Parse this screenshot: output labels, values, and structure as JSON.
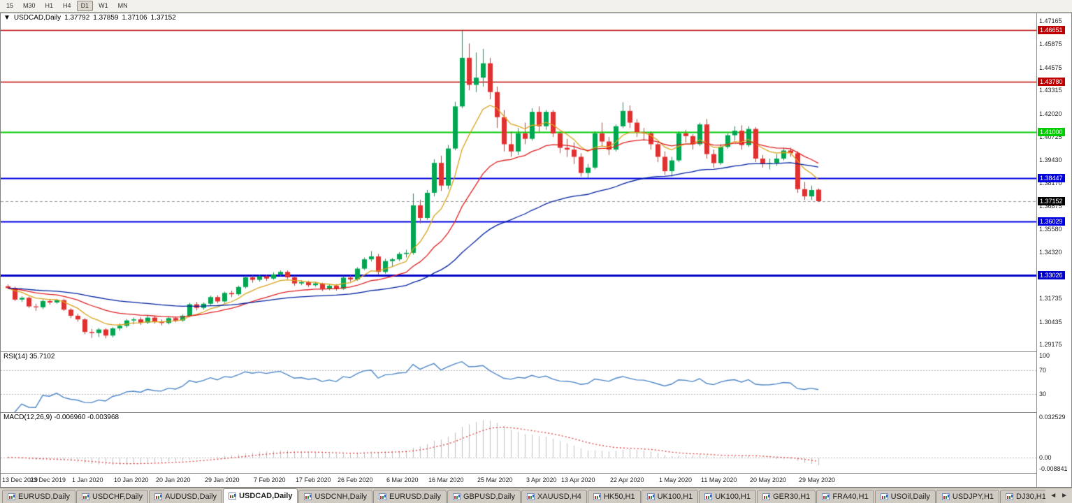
{
  "toolbar": {
    "timeframes": [
      "15",
      "M30",
      "H1",
      "H4",
      "D1",
      "W1",
      "MN"
    ],
    "active": "D1"
  },
  "chart": {
    "collapse_arrow": "▼",
    "symbol": "USDCAD,Daily",
    "open": "1.37792",
    "high": "1.37859",
    "low": "1.37106",
    "close": "1.37152",
    "y_ticks": [
      "1.47165",
      "1.45875",
      "1.44575",
      "1.43315",
      "1.42020",
      "1.40725",
      "1.39430",
      "1.38170",
      "1.36875",
      "1.35580",
      "1.34320",
      "1.33030",
      "1.31735",
      "1.30435",
      "1.29175"
    ]
  },
  "rsi": {
    "label": "RSI(14) 35.7102",
    "ticks": [
      {
        "v": 100,
        "t": "100"
      },
      {
        "v": 70,
        "t": "70"
      },
      {
        "v": 30,
        "t": "30"
      }
    ],
    "levels": [
      70,
      30
    ],
    "color": "#4E86C8",
    "range": [
      0,
      100
    ]
  },
  "macd": {
    "label": "MACD(12,26,9) -0.006960 -0.003968",
    "ticks": [
      {
        "v": 0.032529,
        "t": "0.032529"
      },
      {
        "v": 0,
        "t": "0.00"
      },
      {
        "v": -0.008841,
        "t": "-0.008841"
      }
    ],
    "range": [
      -0.0125,
      0.036
    ],
    "hist_color": "#BFBFBF",
    "signal_color": "#E03030"
  },
  "tabs": {
    "items": [
      "EURUSD,Daily",
      "USDCHF,Daily",
      "AUDUSD,Daily",
      "USDCAD,Daily",
      "USDCNH,Daily",
      "EURUSD,Daily",
      "GBPUSD,Daily",
      "XAUUSD,H4",
      "HK50,H1",
      "UK100,H1",
      "UK100,H1",
      "GER30,H1",
      "FRA40,H1",
      "USOil,Daily",
      "USDJPY,H1",
      "DJ30,H1"
    ],
    "active_index": 3,
    "left_arrow": "◄",
    "right_arrow": "►"
  },
  "chart_data": {
    "type": "candlestick",
    "symbol": "USDCAD",
    "timeframe": "Daily",
    "price_range": [
      1.288,
      1.476
    ],
    "colors": {
      "up": "#00A651",
      "down": "#E03030",
      "bg": "#FFFFFF"
    },
    "current_price": {
      "price": 1.37152,
      "label": "1.37152",
      "label_bg": "#000000"
    },
    "levels": [
      {
        "price": 1.46651,
        "label": "1.46651",
        "color": "#C00000",
        "width": 1.5
      },
      {
        "price": 1.4378,
        "label": "1.43780",
        "color": "#C00000",
        "width": 1.5
      },
      {
        "price": 1.41,
        "label": "1.41000",
        "color": "#00CC00",
        "width": 2
      },
      {
        "price": 1.38447,
        "label": "1.38447",
        "color": "#0000E0",
        "width": 2
      },
      {
        "price": 1.36029,
        "label": "1.36029",
        "color": "#0000E0",
        "width": 2
      },
      {
        "price": 1.33026,
        "label": "1.33026",
        "color": "#0000CC",
        "width": 3
      }
    ],
    "moving_averages": [
      {
        "period": 8,
        "color": "#D9A21B"
      },
      {
        "period": 21,
        "color": "#E02020"
      },
      {
        "period": 55,
        "color": "#0020A0"
      }
    ],
    "indicators": {
      "rsi": {
        "period": 14,
        "current": 35.7102
      },
      "macd": {
        "fast": 12,
        "slow": 26,
        "signal": 9,
        "current_macd": -0.00696,
        "current_signal": -0.003968
      }
    },
    "x_labels": [
      {
        "i": 0,
        "t": "13 Dec 2019"
      },
      {
        "i": 6,
        "t": "23 Dec 2019"
      },
      {
        "i": 12,
        "t": "1 Jan 2020"
      },
      {
        "i": 18,
        "t": "10 Jan 2020"
      },
      {
        "i": 24,
        "t": "20 Jan 2020"
      },
      {
        "i": 31,
        "t": "29 Jan 2020"
      },
      {
        "i": 38,
        "t": "7 Feb 2020"
      },
      {
        "i": 44,
        "t": "17 Feb 2020"
      },
      {
        "i": 50,
        "t": "26 Feb 2020"
      },
      {
        "i": 57,
        "t": "6 Mar 2020"
      },
      {
        "i": 63,
        "t": "16 Mar 2020"
      },
      {
        "i": 70,
        "t": "25 Mar 2020"
      },
      {
        "i": 77,
        "t": "3 Apr 2020"
      },
      {
        "i": 82,
        "t": "13 Apr 2020"
      },
      {
        "i": 89,
        "t": "22 Apr 2020"
      },
      {
        "i": 96,
        "t": "1 May 2020"
      },
      {
        "i": 102,
        "t": "11 May 2020"
      },
      {
        "i": 109,
        "t": "20 May 2020"
      },
      {
        "i": 116,
        "t": "29 May 2020"
      }
    ],
    "candles": [
      [
        1.3242,
        1.3252,
        1.3228,
        1.3232
      ],
      [
        1.3232,
        1.324,
        1.316,
        1.3168
      ],
      [
        1.3168,
        1.3186,
        1.3155,
        1.3178
      ],
      [
        1.3178,
        1.3185,
        1.3122,
        1.313
      ],
      [
        1.313,
        1.3145,
        1.3105,
        1.3125
      ],
      [
        1.3125,
        1.317,
        1.3115,
        1.316
      ],
      [
        1.316,
        1.3172,
        1.314,
        1.3152
      ],
      [
        1.3152,
        1.317,
        1.3145,
        1.3165
      ],
      [
        1.3165,
        1.3172,
        1.3105,
        1.3112
      ],
      [
        1.3112,
        1.312,
        1.3065,
        1.3078
      ],
      [
        1.3078,
        1.309,
        1.3045,
        1.3058
      ],
      [
        1.3058,
        1.3065,
        1.2975,
        1.2988
      ],
      [
        1.2988,
        1.3005,
        1.2955,
        1.2982
      ],
      [
        1.2982,
        1.301,
        1.296,
        1.3002
      ],
      [
        1.3002,
        1.3008,
        1.2952,
        1.2968
      ],
      [
        1.2968,
        1.3015,
        1.2958,
        1.3008
      ],
      [
        1.3008,
        1.3035,
        1.2995,
        1.3022
      ],
      [
        1.3022,
        1.306,
        1.3012,
        1.3052
      ],
      [
        1.3052,
        1.3068,
        1.303,
        1.3058
      ],
      [
        1.3058,
        1.307,
        1.3028,
        1.304
      ],
      [
        1.304,
        1.3078,
        1.3032,
        1.3068
      ],
      [
        1.3068,
        1.3075,
        1.3035,
        1.3045
      ],
      [
        1.3045,
        1.3058,
        1.3025,
        1.3038
      ],
      [
        1.3038,
        1.3072,
        1.303,
        1.3065
      ],
      [
        1.3065,
        1.3072,
        1.3042,
        1.3052
      ],
      [
        1.3052,
        1.3085,
        1.3045,
        1.3078
      ],
      [
        1.3078,
        1.315,
        1.307,
        1.3142
      ],
      [
        1.3142,
        1.3155,
        1.3108,
        1.3122
      ],
      [
        1.3122,
        1.3152,
        1.3112,
        1.3145
      ],
      [
        1.3145,
        1.319,
        1.3138,
        1.3182
      ],
      [
        1.3182,
        1.3192,
        1.3148,
        1.3158
      ],
      [
        1.3158,
        1.3212,
        1.315,
        1.3205
      ],
      [
        1.3205,
        1.3218,
        1.3182,
        1.3198
      ],
      [
        1.3198,
        1.3245,
        1.319,
        1.3238
      ],
      [
        1.3238,
        1.33,
        1.323,
        1.3292
      ],
      [
        1.3292,
        1.3302,
        1.3262,
        1.3278
      ],
      [
        1.3278,
        1.3305,
        1.3268,
        1.3298
      ],
      [
        1.3298,
        1.3308,
        1.3272,
        1.3285
      ],
      [
        1.3285,
        1.332,
        1.3278,
        1.3308
      ],
      [
        1.3308,
        1.333,
        1.3298,
        1.3322
      ],
      [
        1.3322,
        1.333,
        1.3282,
        1.3292
      ],
      [
        1.3292,
        1.33,
        1.3245,
        1.3258
      ],
      [
        1.3258,
        1.3275,
        1.3248,
        1.3265
      ],
      [
        1.3265,
        1.3272,
        1.3238,
        1.3248
      ],
      [
        1.3248,
        1.3268,
        1.324,
        1.3258
      ],
      [
        1.3258,
        1.3262,
        1.3215,
        1.3228
      ],
      [
        1.3228,
        1.3252,
        1.322,
        1.3245
      ],
      [
        1.3245,
        1.3255,
        1.3218,
        1.3228
      ],
      [
        1.3228,
        1.3298,
        1.3222,
        1.329
      ],
      [
        1.329,
        1.3302,
        1.3268,
        1.328
      ],
      [
        1.328,
        1.3348,
        1.3272,
        1.334
      ],
      [
        1.334,
        1.3402,
        1.3332,
        1.3392
      ],
      [
        1.3392,
        1.3438,
        1.338,
        1.3408
      ],
      [
        1.3408,
        1.3422,
        1.3308,
        1.3322
      ],
      [
        1.3322,
        1.3395,
        1.3312,
        1.3382
      ],
      [
        1.3382,
        1.34,
        1.3352,
        1.3392
      ],
      [
        1.3392,
        1.3432,
        1.3382,
        1.3422
      ],
      [
        1.3422,
        1.3445,
        1.3402,
        1.3428
      ],
      [
        1.3428,
        1.3758,
        1.3418,
        1.3692
      ],
      [
        1.3692,
        1.3722,
        1.3592,
        1.3622
      ],
      [
        1.3622,
        1.3778,
        1.3612,
        1.3762
      ],
      [
        1.3762,
        1.3948,
        1.3742,
        1.3928
      ],
      [
        1.3928,
        1.3968,
        1.3772,
        1.3802
      ],
      [
        1.3802,
        1.4028,
        1.3782,
        1.4008
      ],
      [
        1.4008,
        1.4268,
        1.3998,
        1.4242
      ],
      [
        1.4242,
        1.4668,
        1.4232,
        1.4512
      ],
      [
        1.4512,
        1.4592,
        1.4332,
        1.4362
      ],
      [
        1.4362,
        1.4542,
        1.4322,
        1.4402
      ],
      [
        1.4402,
        1.4562,
        1.4352,
        1.4482
      ],
      [
        1.4482,
        1.4512,
        1.4282,
        1.4322
      ],
      [
        1.4322,
        1.4352,
        1.4122,
        1.4182
      ],
      [
        1.4182,
        1.4222,
        1.3992,
        1.4032
      ],
      [
        1.4032,
        1.4102,
        1.3962,
        1.3992
      ],
      [
        1.3992,
        1.4122,
        1.3972,
        1.4092
      ],
      [
        1.4092,
        1.4152,
        1.4032,
        1.4062
      ],
      [
        1.4062,
        1.4232,
        1.4052,
        1.4212
      ],
      [
        1.4212,
        1.4242,
        1.4102,
        1.4132
      ],
      [
        1.4132,
        1.4222,
        1.4112,
        1.4212
      ],
      [
        1.4212,
        1.4222,
        1.4072,
        1.4092
      ],
      [
        1.4092,
        1.4102,
        1.3982,
        1.4012
      ],
      [
        1.4012,
        1.4062,
        1.3962,
        1.4002
      ],
      [
        1.4002,
        1.4042,
        1.3922,
        1.3962
      ],
      [
        1.3962,
        1.3982,
        1.3852,
        1.3872
      ],
      [
        1.3872,
        1.3922,
        1.3842,
        1.3902
      ],
      [
        1.3902,
        1.4102,
        1.3892,
        1.4092
      ],
      [
        1.4092,
        1.4152,
        1.4022,
        1.4047
      ],
      [
        1.4047,
        1.4072,
        1.3972,
        1.4002
      ],
      [
        1.4002,
        1.4142,
        1.3992,
        1.4132
      ],
      [
        1.4132,
        1.4265,
        1.4122,
        1.4217
      ],
      [
        1.4217,
        1.4247,
        1.4122,
        1.4152
      ],
      [
        1.4152,
        1.4172,
        1.4072,
        1.4097
      ],
      [
        1.4097,
        1.4122,
        1.4052,
        1.4092
      ],
      [
        1.4092,
        1.4102,
        1.4002,
        1.4032
      ],
      [
        1.4032,
        1.4042,
        1.3932,
        1.3962
      ],
      [
        1.3962,
        1.3992,
        1.3862,
        1.3882
      ],
      [
        1.3882,
        1.3962,
        1.3852,
        1.3942
      ],
      [
        1.3942,
        1.4102,
        1.3932,
        1.4092
      ],
      [
        1.4092,
        1.4112,
        1.4042,
        1.4077
      ],
      [
        1.4077,
        1.4087,
        1.4002,
        1.4032
      ],
      [
        1.4032,
        1.4152,
        1.4022,
        1.4142
      ],
      [
        1.4142,
        1.4172,
        1.3952,
        1.3977
      ],
      [
        1.3977,
        1.4002,
        1.3902,
        1.3927
      ],
      [
        1.3927,
        1.4032,
        1.3917,
        1.4017
      ],
      [
        1.4017,
        1.4092,
        1.4007,
        1.4082
      ],
      [
        1.4082,
        1.4132,
        1.4052,
        1.4107
      ],
      [
        1.4107,
        1.4137,
        1.4002,
        1.4027
      ],
      [
        1.4027,
        1.4132,
        1.4017,
        1.4117
      ],
      [
        1.4117,
        1.4127,
        1.3932,
        1.3952
      ],
      [
        1.3952,
        1.3972,
        1.3902,
        1.3922
      ],
      [
        1.3922,
        1.3952,
        1.3892,
        1.3927
      ],
      [
        1.3927,
        1.3977,
        1.3912,
        1.3952
      ],
      [
        1.3952,
        1.4012,
        1.3942,
        1.3997
      ],
      [
        1.3997,
        1.4012,
        1.3962,
        1.3982
      ],
      [
        1.3982,
        1.3992,
        1.3762,
        1.3782
      ],
      [
        1.3782,
        1.3822,
        1.3722,
        1.3742
      ],
      [
        1.3742,
        1.3802,
        1.3722,
        1.3777
      ],
      [
        1.37792,
        1.37859,
        1.37106,
        1.37152
      ]
    ]
  }
}
